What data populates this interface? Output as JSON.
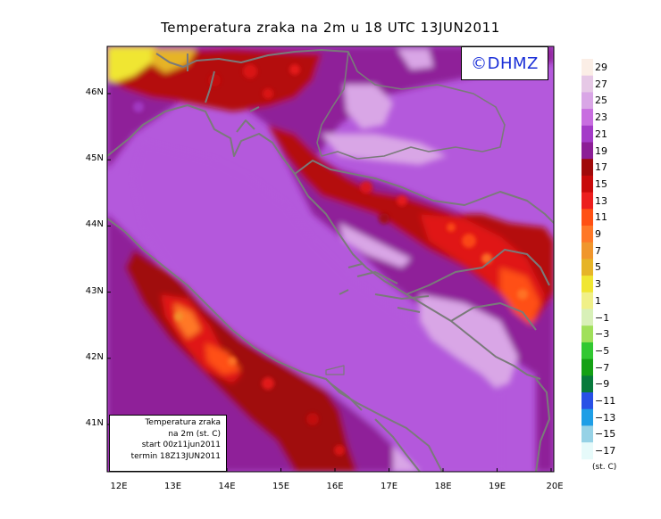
{
  "title": "Temperatura zraka na 2m u 18 UTC 13JUN2011",
  "logo": "©DHMZ",
  "info_box": {
    "line1": "Temperatura zraka",
    "line2": "na 2m (st. C)",
    "line3": "start 00z11jun2011",
    "line4": "termin 18Z13JUN2011"
  },
  "axes": {
    "x_ticks": [
      "12E",
      "13E",
      "14E",
      "15E",
      "16E",
      "17E",
      "18E",
      "19E",
      "20E"
    ],
    "y_ticks": [
      "46N",
      "45N",
      "44N",
      "43N",
      "42N",
      "41N"
    ]
  },
  "colorbar": {
    "unit": "(st. C)",
    "labels": [
      "29",
      "27",
      "25",
      "23",
      "21",
      "19",
      "17",
      "15",
      "13",
      "11",
      "9",
      "7",
      "5",
      "3",
      "1",
      "−1",
      "−3",
      "−5",
      "−7",
      "−9",
      "−11",
      "−13",
      "−15",
      "−17"
    ],
    "colors": [
      "#fbeee6",
      "#e6c8e6",
      "#d9a6e6",
      "#c86ee0",
      "#a43cc8",
      "#8c1e96",
      "#a00a0a",
      "#c80a0a",
      "#ec1e1e",
      "#ff5014",
      "#ff7828",
      "#f0962d",
      "#e6b428",
      "#f0e632",
      "#f0f088",
      "#d8f0b8",
      "#a0e05a",
      "#32c832",
      "#14a014",
      "#087a3c",
      "#2850e6",
      "#1e9ee6",
      "#96d2e6",
      "#e6fafa"
    ]
  },
  "legend_colors": {
    "sea": "#b459dc",
    "coast": "#7a7a7a"
  }
}
